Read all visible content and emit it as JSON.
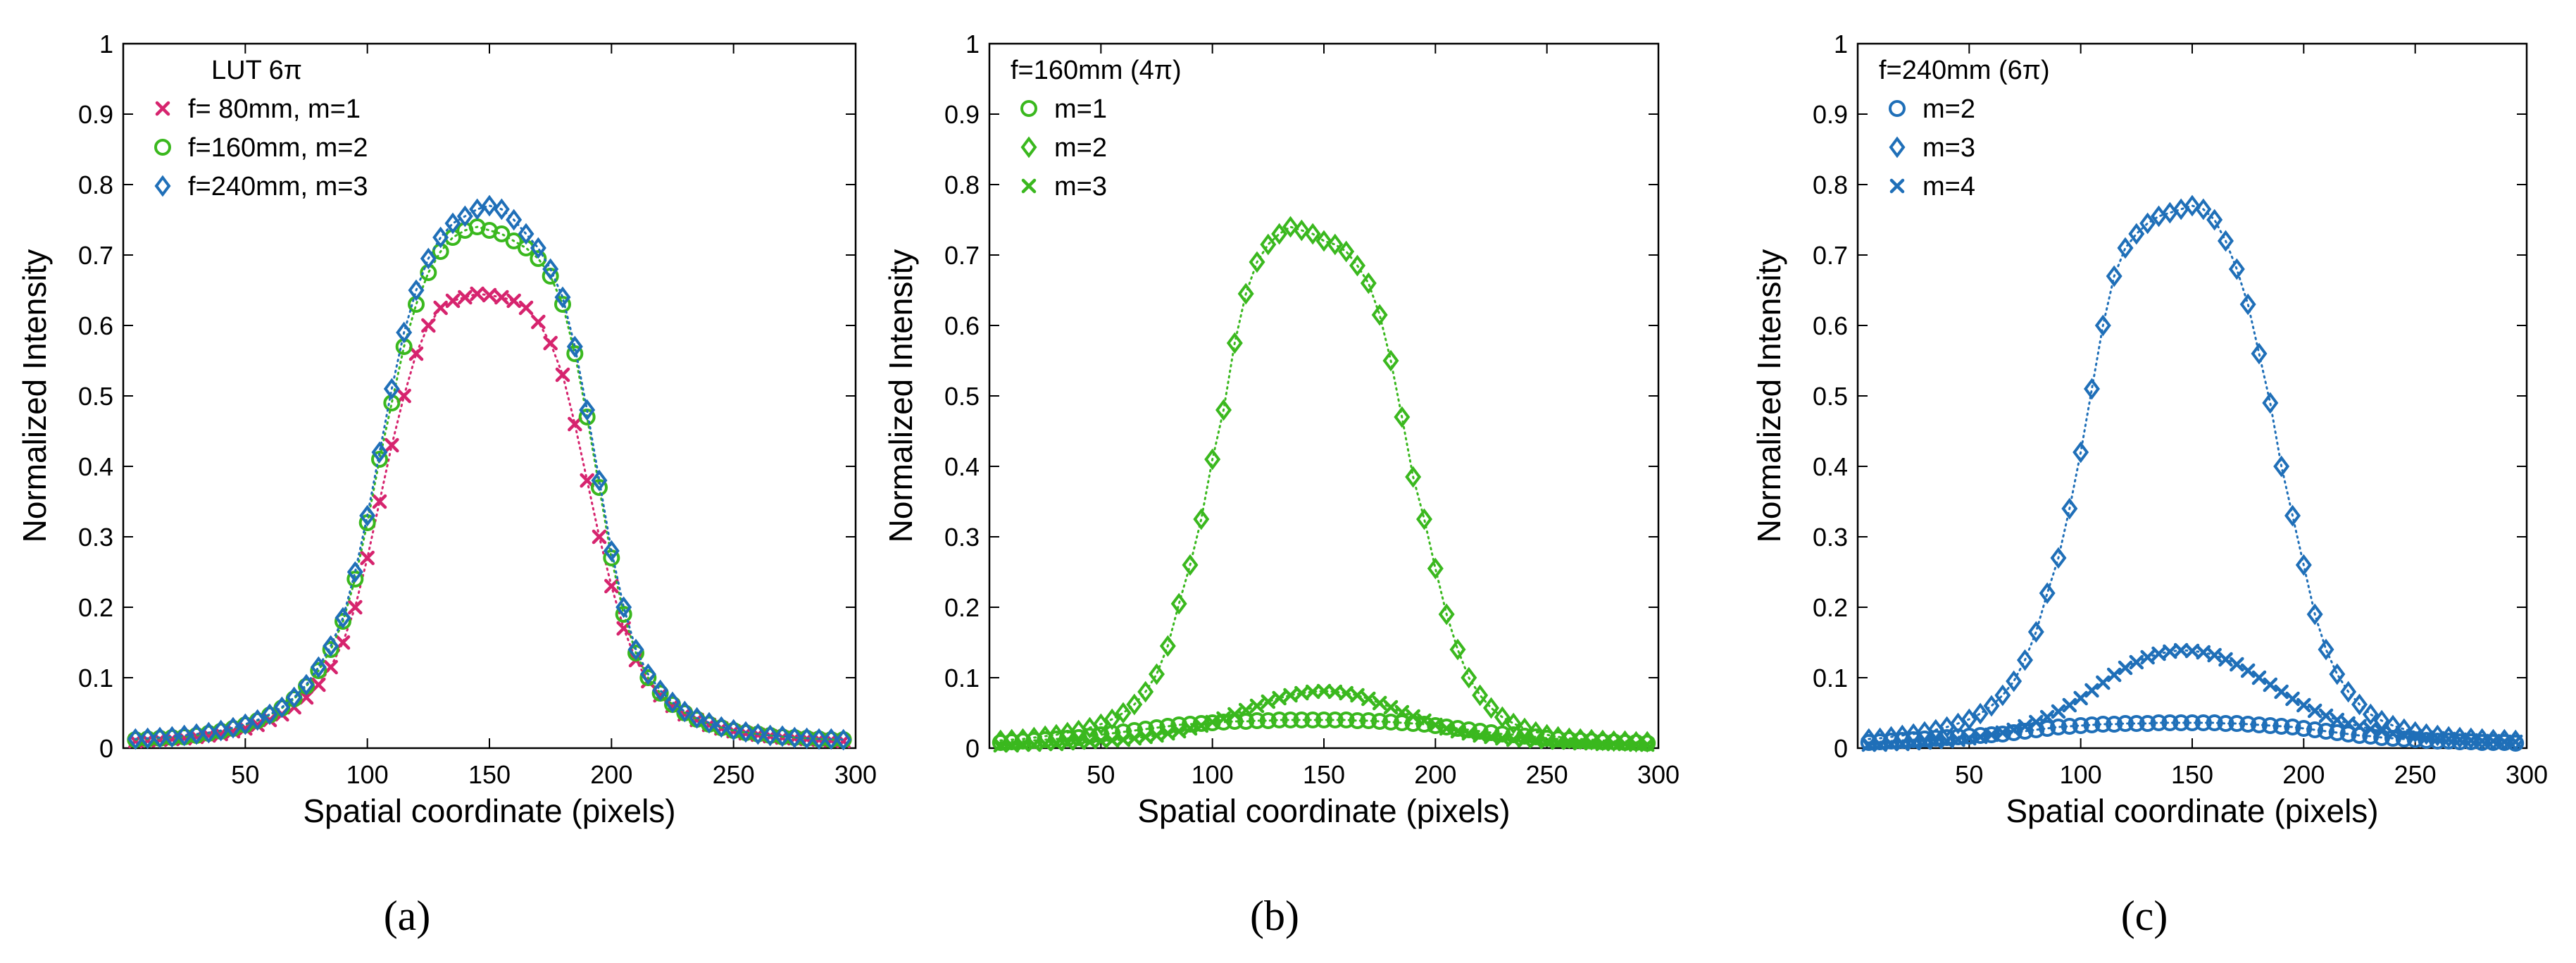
{
  "figure": {
    "captions": [
      "(a)",
      "(b)",
      "(c)"
    ]
  },
  "colors": {
    "magenta": "#d6246e",
    "green": "#3ab81e",
    "blue": "#1f6fb8"
  },
  "chart_data": [
    {
      "type": "line",
      "panel": "(a)",
      "title": "",
      "xlabel": "Spatial coordinate (pixels)",
      "ylabel": "Normalized Intensity",
      "xlim": [
        0,
        300
      ],
      "ylim": [
        0,
        1
      ],
      "xticks": [
        50,
        100,
        150,
        200,
        250,
        300
      ],
      "yticks": [
        0,
        0.1,
        0.2,
        0.3,
        0.4,
        0.5,
        0.6,
        0.7,
        0.8,
        0.9,
        1
      ],
      "legend_title": "LUT 6π",
      "legend_placement": "top-left",
      "x": [
        5,
        10,
        15,
        20,
        25,
        30,
        35,
        40,
        45,
        50,
        55,
        60,
        65,
        70,
        75,
        80,
        85,
        90,
        95,
        100,
        105,
        110,
        115,
        120,
        125,
        130,
        135,
        140,
        145,
        150,
        155,
        160,
        165,
        170,
        175,
        180,
        185,
        190,
        195,
        200,
        205,
        210,
        215,
        220,
        225,
        230,
        235,
        240,
        245,
        250,
        255,
        260,
        265,
        270,
        275,
        280,
        285,
        290,
        295
      ],
      "series": [
        {
          "name": "f= 80mm, m=1",
          "marker": "x",
          "color": "#d6246e",
          "values": [
            0.01,
            0.011,
            0.012,
            0.013,
            0.014,
            0.016,
            0.018,
            0.02,
            0.024,
            0.028,
            0.033,
            0.04,
            0.048,
            0.058,
            0.072,
            0.09,
            0.115,
            0.15,
            0.2,
            0.27,
            0.35,
            0.43,
            0.5,
            0.56,
            0.6,
            0.625,
            0.635,
            0.64,
            0.645,
            0.643,
            0.64,
            0.635,
            0.625,
            0.605,
            0.575,
            0.53,
            0.46,
            0.38,
            0.3,
            0.23,
            0.17,
            0.125,
            0.095,
            0.075,
            0.06,
            0.048,
            0.04,
            0.033,
            0.028,
            0.024,
            0.021,
            0.019,
            0.017,
            0.015,
            0.014,
            0.013,
            0.012,
            0.011,
            0.01
          ]
        },
        {
          "name": "f=160mm, m=2",
          "marker": "o",
          "color": "#3ab81e",
          "values": [
            0.012,
            0.013,
            0.014,
            0.015,
            0.016,
            0.018,
            0.021,
            0.024,
            0.028,
            0.033,
            0.039,
            0.047,
            0.057,
            0.07,
            0.088,
            0.11,
            0.14,
            0.18,
            0.24,
            0.32,
            0.41,
            0.49,
            0.57,
            0.63,
            0.675,
            0.705,
            0.725,
            0.735,
            0.74,
            0.735,
            0.73,
            0.72,
            0.71,
            0.695,
            0.67,
            0.63,
            0.56,
            0.47,
            0.37,
            0.27,
            0.19,
            0.135,
            0.1,
            0.078,
            0.062,
            0.05,
            0.041,
            0.034,
            0.029,
            0.025,
            0.022,
            0.02,
            0.018,
            0.016,
            0.015,
            0.014,
            0.013,
            0.012,
            0.012
          ]
        },
        {
          "name": "f=240mm, m=3",
          "marker": "diamond",
          "color": "#1f6fb8",
          "values": [
            0.013,
            0.014,
            0.015,
            0.016,
            0.018,
            0.02,
            0.022,
            0.025,
            0.029,
            0.034,
            0.04,
            0.048,
            0.058,
            0.072,
            0.09,
            0.115,
            0.145,
            0.185,
            0.25,
            0.33,
            0.42,
            0.51,
            0.59,
            0.65,
            0.695,
            0.725,
            0.745,
            0.755,
            0.765,
            0.77,
            0.765,
            0.75,
            0.73,
            0.71,
            0.68,
            0.64,
            0.57,
            0.48,
            0.38,
            0.28,
            0.2,
            0.14,
            0.105,
            0.082,
            0.065,
            0.052,
            0.043,
            0.036,
            0.03,
            0.026,
            0.023,
            0.02,
            0.018,
            0.017,
            0.015,
            0.014,
            0.013,
            0.013,
            0.012
          ]
        }
      ]
    },
    {
      "type": "line",
      "panel": "(b)",
      "title": "",
      "xlabel": "Spatial coordinate (pixels)",
      "ylabel": "Normalized Intensity",
      "xlim": [
        0,
        300
      ],
      "ylim": [
        0,
        1
      ],
      "xticks": [
        50,
        100,
        150,
        200,
        250,
        300
      ],
      "yticks": [
        0,
        0.1,
        0.2,
        0.3,
        0.4,
        0.5,
        0.6,
        0.7,
        0.8,
        0.9,
        1
      ],
      "legend_title": "f=160mm (4π)",
      "legend_placement": "top-left",
      "x": [
        5,
        10,
        15,
        20,
        25,
        30,
        35,
        40,
        45,
        50,
        55,
        60,
        65,
        70,
        75,
        80,
        85,
        90,
        95,
        100,
        105,
        110,
        115,
        120,
        125,
        130,
        135,
        140,
        145,
        150,
        155,
        160,
        165,
        170,
        175,
        180,
        185,
        190,
        195,
        200,
        205,
        210,
        215,
        220,
        225,
        230,
        235,
        240,
        245,
        250,
        255,
        260,
        265,
        270,
        275,
        280,
        285,
        290,
        295
      ],
      "series": [
        {
          "name": "m=1",
          "marker": "o",
          "color": "#3ab81e",
          "values": [
            0.008,
            0.009,
            0.01,
            0.011,
            0.012,
            0.013,
            0.014,
            0.015,
            0.017,
            0.019,
            0.021,
            0.023,
            0.025,
            0.027,
            0.029,
            0.031,
            0.033,
            0.034,
            0.035,
            0.036,
            0.037,
            0.038,
            0.038,
            0.039,
            0.039,
            0.04,
            0.04,
            0.04,
            0.04,
            0.04,
            0.04,
            0.04,
            0.039,
            0.039,
            0.038,
            0.037,
            0.036,
            0.035,
            0.034,
            0.032,
            0.03,
            0.028,
            0.026,
            0.024,
            0.022,
            0.02,
            0.019,
            0.017,
            0.016,
            0.014,
            0.013,
            0.012,
            0.011,
            0.01,
            0.009,
            0.009,
            0.008,
            0.008,
            0.007
          ]
        },
        {
          "name": "m=2",
          "marker": "diamond",
          "color": "#3ab81e",
          "values": [
            0.011,
            0.012,
            0.013,
            0.015,
            0.017,
            0.019,
            0.022,
            0.025,
            0.029,
            0.034,
            0.041,
            0.05,
            0.062,
            0.08,
            0.105,
            0.145,
            0.205,
            0.26,
            0.325,
            0.41,
            0.48,
            0.575,
            0.645,
            0.69,
            0.715,
            0.73,
            0.74,
            0.735,
            0.73,
            0.72,
            0.715,
            0.705,
            0.685,
            0.66,
            0.615,
            0.55,
            0.47,
            0.385,
            0.325,
            0.255,
            0.19,
            0.14,
            0.1,
            0.075,
            0.057,
            0.044,
            0.035,
            0.028,
            0.023,
            0.019,
            0.016,
            0.014,
            0.013,
            0.012,
            0.011,
            0.01,
            0.01,
            0.009,
            0.009
          ]
        },
        {
          "name": "m=3",
          "marker": "x",
          "color": "#3ab81e",
          "values": [
            0.004,
            0.004,
            0.005,
            0.005,
            0.006,
            0.006,
            0.007,
            0.008,
            0.009,
            0.01,
            0.011,
            0.012,
            0.014,
            0.016,
            0.018,
            0.021,
            0.024,
            0.028,
            0.032,
            0.037,
            0.042,
            0.048,
            0.054,
            0.06,
            0.066,
            0.071,
            0.075,
            0.078,
            0.08,
            0.081,
            0.08,
            0.078,
            0.075,
            0.07,
            0.064,
            0.058,
            0.051,
            0.045,
            0.039,
            0.033,
            0.028,
            0.024,
            0.021,
            0.018,
            0.016,
            0.014,
            0.012,
            0.011,
            0.01,
            0.009,
            0.008,
            0.008,
            0.007,
            0.007,
            0.006,
            0.006,
            0.006,
            0.005,
            0.005
          ]
        }
      ]
    },
    {
      "type": "line",
      "panel": "(c)",
      "title": "",
      "xlabel": "Spatial coordinate (pixels)",
      "ylabel": "Normalized Intensity",
      "xlim": [
        0,
        300
      ],
      "ylim": [
        0,
        1
      ],
      "xticks": [
        50,
        100,
        150,
        200,
        250,
        300
      ],
      "yticks": [
        0,
        0.1,
        0.2,
        0.3,
        0.4,
        0.5,
        0.6,
        0.7,
        0.8,
        0.9,
        1
      ],
      "legend_title": "f=240mm (6π)",
      "legend_placement": "top-left",
      "x": [
        5,
        10,
        15,
        20,
        25,
        30,
        35,
        40,
        45,
        50,
        55,
        60,
        65,
        70,
        75,
        80,
        85,
        90,
        95,
        100,
        105,
        110,
        115,
        120,
        125,
        130,
        135,
        140,
        145,
        150,
        155,
        160,
        165,
        170,
        175,
        180,
        185,
        190,
        195,
        200,
        205,
        210,
        215,
        220,
        225,
        230,
        235,
        240,
        245,
        250,
        255,
        260,
        265,
        270,
        275,
        280,
        285,
        290,
        295
      ],
      "series": [
        {
          "name": "m=2",
          "marker": "o",
          "color": "#1f6fb8",
          "values": [
            0.008,
            0.009,
            0.01,
            0.011,
            0.012,
            0.013,
            0.014,
            0.015,
            0.016,
            0.017,
            0.018,
            0.019,
            0.02,
            0.022,
            0.024,
            0.026,
            0.028,
            0.03,
            0.031,
            0.032,
            0.033,
            0.034,
            0.034,
            0.035,
            0.035,
            0.035,
            0.036,
            0.036,
            0.036,
            0.036,
            0.036,
            0.036,
            0.035,
            0.035,
            0.034,
            0.033,
            0.032,
            0.031,
            0.03,
            0.028,
            0.026,
            0.024,
            0.022,
            0.02,
            0.018,
            0.017,
            0.015,
            0.014,
            0.013,
            0.012,
            0.011,
            0.01,
            0.01,
            0.009,
            0.009,
            0.008,
            0.008,
            0.008,
            0.007
          ]
        },
        {
          "name": "m=3",
          "marker": "diamond",
          "color": "#1f6fb8",
          "values": [
            0.013,
            0.014,
            0.016,
            0.018,
            0.02,
            0.023,
            0.026,
            0.03,
            0.035,
            0.041,
            0.049,
            0.06,
            0.075,
            0.095,
            0.125,
            0.165,
            0.22,
            0.27,
            0.34,
            0.42,
            0.51,
            0.6,
            0.67,
            0.71,
            0.73,
            0.745,
            0.755,
            0.76,
            0.765,
            0.77,
            0.765,
            0.75,
            0.72,
            0.68,
            0.63,
            0.56,
            0.49,
            0.4,
            0.33,
            0.26,
            0.19,
            0.14,
            0.105,
            0.08,
            0.062,
            0.048,
            0.039,
            0.032,
            0.027,
            0.023,
            0.02,
            0.018,
            0.016,
            0.015,
            0.014,
            0.013,
            0.012,
            0.012,
            0.011
          ]
        },
        {
          "name": "m=4",
          "marker": "x",
          "color": "#1f6fb8",
          "values": [
            0.005,
            0.005,
            0.006,
            0.006,
            0.007,
            0.008,
            0.009,
            0.01,
            0.012,
            0.014,
            0.016,
            0.019,
            0.022,
            0.026,
            0.031,
            0.037,
            0.044,
            0.052,
            0.061,
            0.071,
            0.082,
            0.093,
            0.104,
            0.114,
            0.122,
            0.129,
            0.134,
            0.137,
            0.139,
            0.138,
            0.136,
            0.132,
            0.126,
            0.119,
            0.11,
            0.1,
            0.09,
            0.08,
            0.07,
            0.061,
            0.053,
            0.046,
            0.04,
            0.035,
            0.031,
            0.027,
            0.024,
            0.021,
            0.019,
            0.017,
            0.015,
            0.014,
            0.013,
            0.012,
            0.011,
            0.01,
            0.01,
            0.009,
            0.009
          ]
        }
      ]
    }
  ]
}
